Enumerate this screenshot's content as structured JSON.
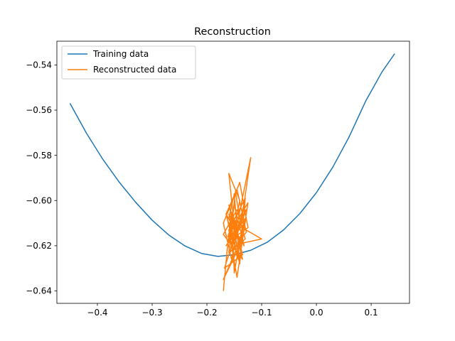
{
  "chart_data": {
    "type": "line",
    "title": "Reconstruction",
    "xlabel": "",
    "ylabel": "",
    "xlim": [
      -0.474,
      0.17
    ],
    "ylim": [
      -0.6455,
      -0.5295
    ],
    "xticks": [
      -0.4,
      -0.3,
      -0.2,
      -0.1,
      0.0,
      0.1
    ],
    "xtick_labels": [
      "−0.4",
      "−0.3",
      "−0.2",
      "−0.1",
      "0.0",
      "0.1"
    ],
    "yticks": [
      -0.64,
      -0.62,
      -0.6,
      -0.58,
      -0.56,
      -0.54
    ],
    "ytick_labels": [
      "−0.64",
      "−0.62",
      "−0.60",
      "−0.58",
      "−0.56",
      "−0.54"
    ],
    "grid": false,
    "legend": "upper left",
    "series": [
      {
        "name": "Training data",
        "color": "#1f77b4",
        "x": [
          -0.45,
          -0.42,
          -0.39,
          -0.36,
          -0.33,
          -0.3,
          -0.27,
          -0.24,
          -0.21,
          -0.18,
          -0.15,
          -0.12,
          -0.09,
          -0.06,
          -0.03,
          0.0,
          0.03,
          0.06,
          0.09,
          0.12,
          0.143
        ],
        "y": [
          -0.557,
          -0.5702,
          -0.5818,
          -0.5919,
          -0.6008,
          -0.6087,
          -0.6152,
          -0.6201,
          -0.6234,
          -0.6247,
          -0.624,
          -0.622,
          -0.6185,
          -0.613,
          -0.6057,
          -0.5965,
          -0.5852,
          -0.5717,
          -0.556,
          -0.543,
          -0.535
        ]
      },
      {
        "name": "Reconstructed data",
        "color": "#ff7f0e",
        "x": [
          -0.17,
          -0.163,
          -0.155,
          -0.14,
          -0.15,
          -0.16,
          -0.145,
          -0.13,
          -0.155,
          -0.17,
          -0.14,
          -0.125,
          -0.16,
          -0.15,
          -0.132,
          -0.165,
          -0.145,
          -0.128,
          -0.158,
          -0.14,
          -0.16,
          -0.15,
          -0.135,
          -0.17,
          -0.145,
          -0.13,
          -0.16,
          -0.148,
          -0.138,
          -0.12,
          -0.152,
          -0.165,
          -0.14,
          -0.13,
          -0.16,
          -0.145,
          -0.125,
          -0.162,
          -0.15,
          -0.135,
          -0.168,
          -0.14,
          -0.128,
          -0.155,
          -0.145,
          -0.16,
          -0.15,
          -0.138,
          -0.1,
          -0.15,
          -0.16,
          -0.145,
          -0.13,
          -0.148,
          -0.165,
          -0.135,
          -0.15,
          -0.155,
          -0.14,
          -0.17,
          -0.142
        ],
        "y": [
          -0.64,
          -0.622,
          -0.605,
          -0.628,
          -0.597,
          -0.608,
          -0.616,
          -0.599,
          -0.626,
          -0.61,
          -0.592,
          -0.612,
          -0.618,
          -0.602,
          -0.62,
          -0.606,
          -0.595,
          -0.614,
          -0.623,
          -0.6,
          -0.588,
          -0.611,
          -0.626,
          -0.615,
          -0.604,
          -0.617,
          -0.623,
          -0.596,
          -0.611,
          -0.581,
          -0.619,
          -0.606,
          -0.628,
          -0.599,
          -0.613,
          -0.634,
          -0.601,
          -0.616,
          -0.608,
          -0.624,
          -0.63,
          -0.609,
          -0.604,
          -0.621,
          -0.615,
          -0.602,
          -0.612,
          -0.619,
          -0.617,
          -0.61,
          -0.606,
          -0.625,
          -0.608,
          -0.614,
          -0.62,
          -0.611,
          -0.632,
          -0.605,
          -0.618,
          -0.635,
          -0.621
        ]
      }
    ]
  }
}
